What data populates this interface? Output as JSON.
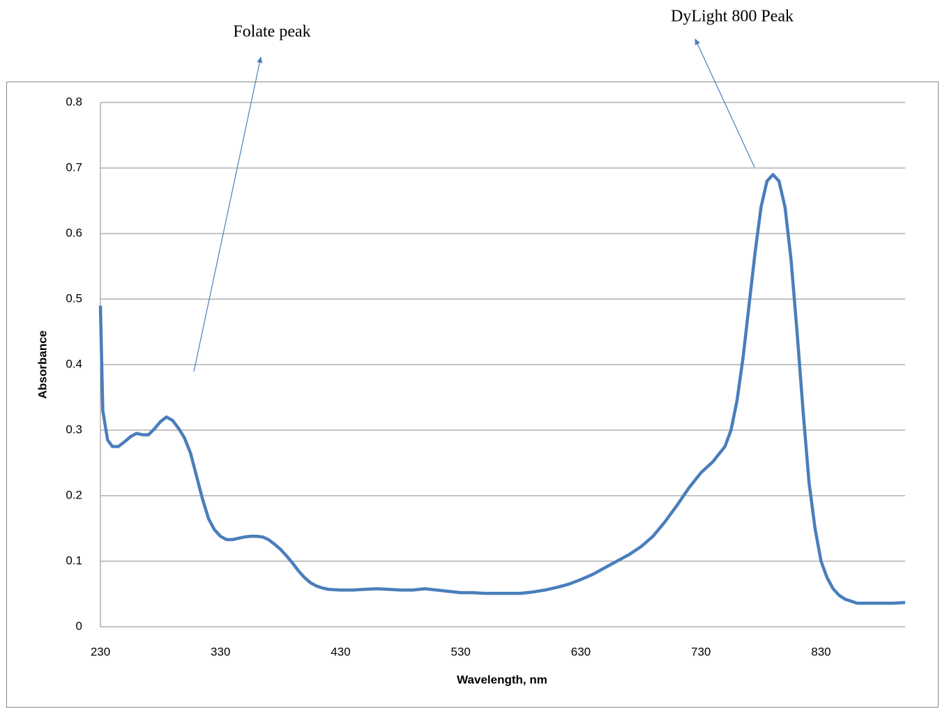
{
  "chart_data": {
    "type": "line",
    "annotations": [
      "Folate peak",
      "DyLight 800 Peak"
    ],
    "x_label": "Wavelength, nm",
    "y_label": "Absorbance",
    "x": [
      230,
      232,
      236,
      240,
      245,
      250,
      255,
      260,
      265,
      270,
      275,
      280,
      285,
      290,
      295,
      300,
      305,
      310,
      315,
      320,
      325,
      330,
      335,
      340,
      345,
      350,
      355,
      360,
      365,
      370,
      375,
      380,
      385,
      390,
      395,
      400,
      405,
      410,
      415,
      420,
      430,
      440,
      450,
      460,
      470,
      480,
      490,
      500,
      510,
      520,
      530,
      540,
      550,
      560,
      570,
      580,
      590,
      600,
      610,
      620,
      630,
      640,
      650,
      660,
      670,
      680,
      690,
      700,
      710,
      720,
      730,
      740,
      750,
      755,
      760,
      765,
      770,
      775,
      780,
      785,
      790,
      795,
      800,
      805,
      810,
      815,
      820,
      825,
      830,
      835,
      840,
      845,
      850,
      855,
      860,
      870,
      880,
      890,
      900
    ],
    "values": [
      0.49,
      0.33,
      0.285,
      0.275,
      0.275,
      0.282,
      0.29,
      0.295,
      0.293,
      0.293,
      0.302,
      0.313,
      0.32,
      0.315,
      0.303,
      0.288,
      0.265,
      0.23,
      0.195,
      0.165,
      0.148,
      0.138,
      0.133,
      0.133,
      0.135,
      0.137,
      0.138,
      0.138,
      0.137,
      0.133,
      0.126,
      0.118,
      0.108,
      0.097,
      0.085,
      0.075,
      0.067,
      0.062,
      0.059,
      0.057,
      0.056,
      0.056,
      0.057,
      0.058,
      0.057,
      0.056,
      0.056,
      0.058,
      0.056,
      0.054,
      0.052,
      0.052,
      0.051,
      0.051,
      0.051,
      0.051,
      0.053,
      0.056,
      0.06,
      0.065,
      0.072,
      0.08,
      0.09,
      0.1,
      0.11,
      0.122,
      0.138,
      0.16,
      0.185,
      0.212,
      0.235,
      0.252,
      0.275,
      0.3,
      0.345,
      0.41,
      0.49,
      0.57,
      0.64,
      0.68,
      0.69,
      0.68,
      0.64,
      0.56,
      0.45,
      0.33,
      0.22,
      0.15,
      0.1,
      0.075,
      0.058,
      0.048,
      0.042,
      0.039,
      0.036,
      0.036,
      0.036,
      0.036,
      0.037
    ],
    "color": "#4a7ebb",
    "xlim": [
      230,
      900
    ],
    "xticks": [
      230,
      330,
      430,
      530,
      630,
      730,
      830
    ],
    "ylim": [
      0,
      0.8
    ],
    "yticks": [
      0,
      0.1,
      0.2,
      0.3,
      0.4,
      0.5,
      0.6,
      0.7,
      0.8
    ],
    "grid": true
  }
}
